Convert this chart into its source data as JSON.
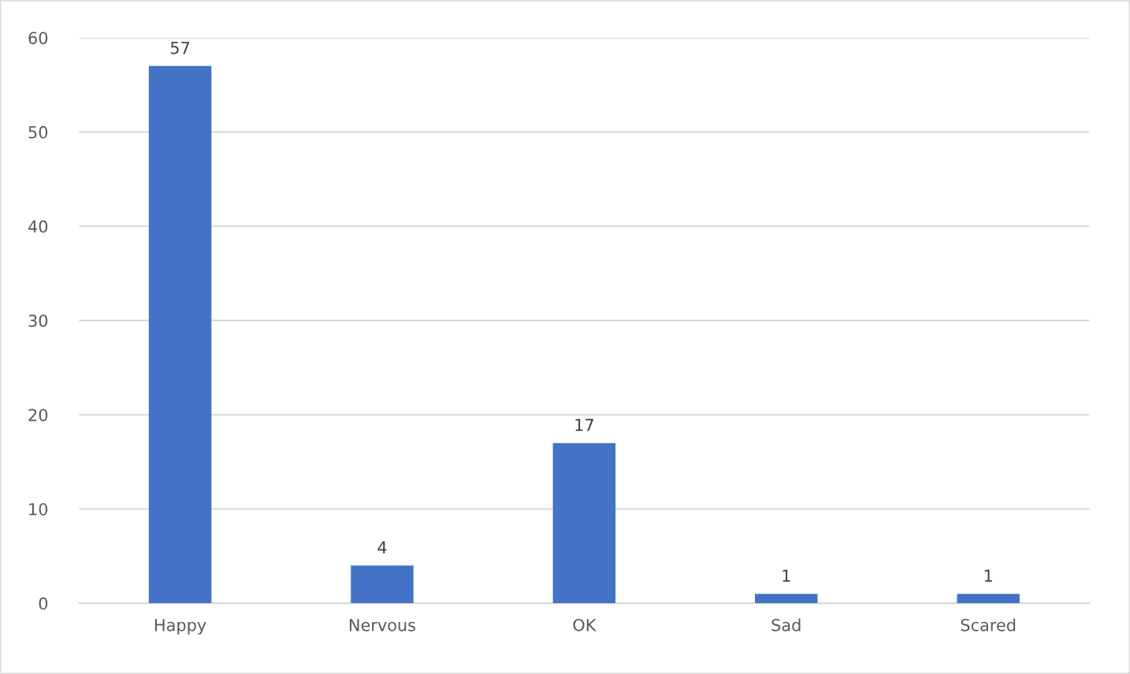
{
  "chart_data": {
    "type": "bar",
    "categories": [
      "Happy",
      "Nervous",
      "OK",
      "Sad",
      "Scared"
    ],
    "values": [
      57,
      4,
      17,
      1,
      1
    ],
    "color": "#4472c4",
    "ylim": [
      0,
      60
    ],
    "yticks": [
      0,
      10,
      20,
      30,
      40,
      50,
      60
    ],
    "grid": "y",
    "data_labels": true
  }
}
